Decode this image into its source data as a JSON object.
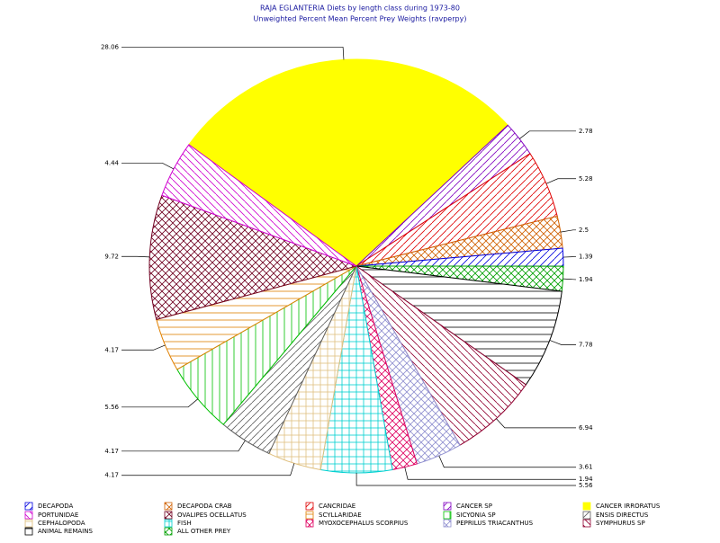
{
  "chart_data": {
    "type": "pie",
    "title": "RAJA EGLANTERIA Diets by length class during 1973-80",
    "subtitle": "Unweighted Percent Mean Percent Prey  Weights (ravperpy)",
    "categories": [
      "CANCER IRRORATUS",
      "CANCER SP",
      "CANCRIDAE",
      "DECAPODA CRAB",
      "DECAPODA",
      "ALL OTHER PREY",
      "ANIMAL REMAINS",
      "SYMPHURUS SP",
      "PEPRILUS TRIACANTHUS",
      "MYOXOCEPHALUS SCORPIUS",
      "FISH",
      "CEPHALOPODA",
      "ENSIS DIRECTUS",
      "SICYONIA SP",
      "SCYLLARIDAE",
      "OVALIPES OCELLATUS",
      "PORTUNIDAE"
    ],
    "values": [
      28.06,
      2.78,
      5.28,
      2.5,
      1.39,
      1.94,
      7.78,
      6.94,
      3.61,
      1.94,
      5.56,
      4.17,
      4.17,
      5.56,
      4.17,
      9.72,
      4.44
    ],
    "colors": [
      "#ffff00",
      "#8000c0",
      "#e00000",
      "#d06000",
      "#0000e0",
      "#00a000",
      "#000000",
      "#900030",
      "#9090d0",
      "#e00060",
      "#00d0d0",
      "#e0c080",
      "#606060",
      "#00c000",
      "#e08000",
      "#700020",
      "#d000d0"
    ],
    "patterns": [
      "solid",
      "diag",
      "diag",
      "cross",
      "diag",
      "cross",
      "horizontal",
      "diag2",
      "cross",
      "cross",
      "grid",
      "grid",
      "diag",
      "vertical",
      "horizontal",
      "cross",
      "diag2"
    ]
  }
}
